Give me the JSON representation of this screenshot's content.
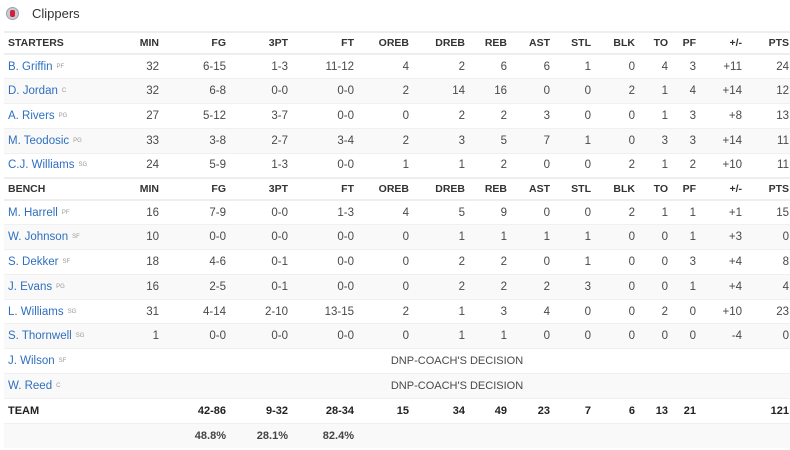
{
  "team": {
    "name": "Clippers",
    "logo_icon": "clippers-logo"
  },
  "colors": {
    "link": "#2f6fbf",
    "alt_row": "#f9f9f9"
  },
  "columns": [
    "MIN",
    "FG",
    "3PT",
    "FT",
    "OREB",
    "DREB",
    "REB",
    "AST",
    "STL",
    "BLK",
    "TO",
    "PF",
    "+/-",
    "PTS"
  ],
  "starters": {
    "label": "STARTERS",
    "players": [
      {
        "name": "B. Griffin",
        "pos": "PF",
        "stats": [
          "32",
          "6-15",
          "1-3",
          "11-12",
          "4",
          "2",
          "6",
          "6",
          "1",
          "0",
          "4",
          "3",
          "+11",
          "24"
        ]
      },
      {
        "name": "D. Jordan",
        "pos": "C",
        "stats": [
          "32",
          "6-8",
          "0-0",
          "0-0",
          "2",
          "14",
          "16",
          "0",
          "0",
          "2",
          "1",
          "4",
          "+14",
          "12"
        ]
      },
      {
        "name": "A. Rivers",
        "pos": "PG",
        "stats": [
          "27",
          "5-12",
          "3-7",
          "0-0",
          "0",
          "2",
          "2",
          "3",
          "0",
          "0",
          "1",
          "3",
          "+8",
          "13"
        ]
      },
      {
        "name": "M. Teodosic",
        "pos": "PG",
        "stats": [
          "33",
          "3-8",
          "2-7",
          "3-4",
          "2",
          "3",
          "5",
          "7",
          "1",
          "0",
          "3",
          "3",
          "+14",
          "11"
        ]
      },
      {
        "name": "C.J. Williams",
        "pos": "SG",
        "stats": [
          "24",
          "5-9",
          "1-3",
          "0-0",
          "1",
          "1",
          "2",
          "0",
          "0",
          "2",
          "1",
          "2",
          "+10",
          "11"
        ]
      }
    ]
  },
  "bench": {
    "label": "BENCH",
    "players": [
      {
        "name": "M. Harrell",
        "pos": "PF",
        "stats": [
          "16",
          "7-9",
          "0-0",
          "1-3",
          "4",
          "5",
          "9",
          "0",
          "0",
          "2",
          "1",
          "1",
          "+1",
          "15"
        ]
      },
      {
        "name": "W. Johnson",
        "pos": "SF",
        "stats": [
          "10",
          "0-0",
          "0-0",
          "0-0",
          "0",
          "1",
          "1",
          "1",
          "1",
          "0",
          "0",
          "1",
          "+3",
          "0"
        ]
      },
      {
        "name": "S. Dekker",
        "pos": "SF",
        "stats": [
          "18",
          "4-6",
          "0-1",
          "0-0",
          "0",
          "2",
          "2",
          "0",
          "1",
          "0",
          "0",
          "3",
          "+4",
          "8"
        ]
      },
      {
        "name": "J. Evans",
        "pos": "PG",
        "stats": [
          "16",
          "2-5",
          "0-1",
          "0-0",
          "0",
          "2",
          "2",
          "2",
          "3",
          "0",
          "0",
          "1",
          "+4",
          "4"
        ]
      },
      {
        "name": "L. Williams",
        "pos": "SG",
        "stats": [
          "31",
          "4-14",
          "2-10",
          "13-15",
          "2",
          "1",
          "3",
          "4",
          "0",
          "0",
          "2",
          "0",
          "+10",
          "23"
        ]
      },
      {
        "name": "S. Thornwell",
        "pos": "SG",
        "stats": [
          "1",
          "0-0",
          "0-0",
          "0-0",
          "0",
          "1",
          "1",
          "0",
          "0",
          "0",
          "0",
          "0",
          "-4",
          "0"
        ]
      },
      {
        "name": "J. Wilson",
        "pos": "SF",
        "dnp": "DNP-COACH'S DECISION"
      },
      {
        "name": "W. Reed",
        "pos": "C",
        "dnp": "DNP-COACH'S DECISION"
      }
    ]
  },
  "totals": {
    "label": "TEAM",
    "stats": [
      "",
      "42-86",
      "9-32",
      "28-34",
      "15",
      "34",
      "49",
      "23",
      "7",
      "6",
      "13",
      "21",
      "",
      "121"
    ],
    "percentages": [
      "",
      "48.8%",
      "28.1%",
      "82.4%",
      "",
      "",
      "",
      "",
      "",
      "",
      "",
      "",
      "",
      ""
    ]
  }
}
